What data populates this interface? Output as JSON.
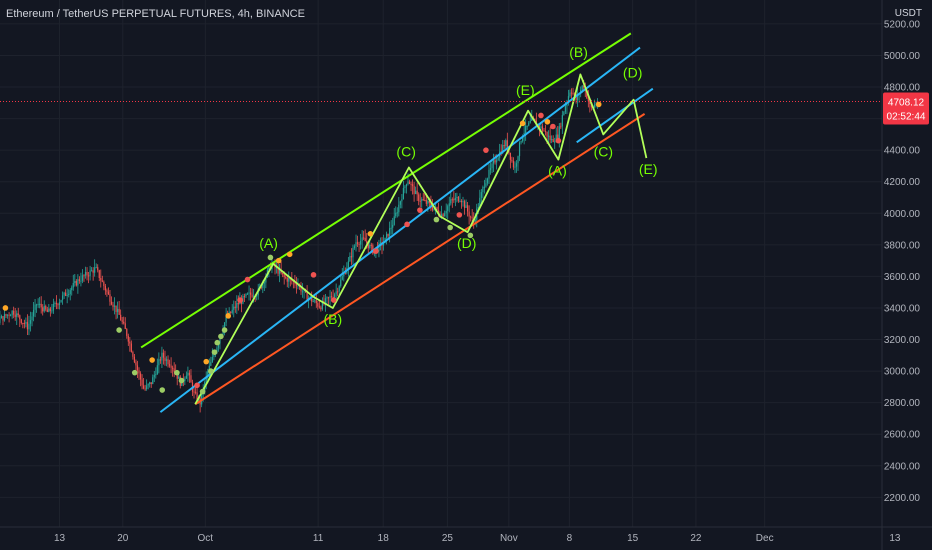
{
  "header": {
    "title": "Ethereum / TetherUS PERPETUAL FUTURES, 4h, BINANCE",
    "currency": "USDT"
  },
  "price_tag": {
    "price": "4708.12",
    "countdown": "02:52:44",
    "color": "#f23645"
  },
  "colors": {
    "background": "#131722",
    "up_candle": "#26a69a",
    "down_candle": "#ef5350",
    "upper_channel": "#76ff03",
    "middle_channel": "#29b6f6",
    "lower_channel": "#ff5722",
    "wave_path": "#b2ff59",
    "wave_labels": "#76ff03"
  },
  "chart_data": {
    "type": "candlestick",
    "symbol": "Ethereum / TetherUS PERPETUAL FUTURES",
    "timeframe": "4h",
    "exchange": "BINANCE",
    "x_axis": {
      "tick_labels": [
        "13",
        "20",
        "Oct",
        "11",
        "18",
        "25",
        "Nov",
        "8",
        "15",
        "22",
        "Dec",
        "13"
      ],
      "tick_days": [
        -17.5,
        -10.6,
        -1.6,
        10.7,
        17.8,
        24.8,
        31.5,
        38.1,
        45.0,
        51.9,
        59.4,
        73.6
      ]
    },
    "y_axis": {
      "ylim": [
        2050,
        5320
      ],
      "tick_labels": [
        "2200.00",
        "2400.00",
        "2600.00",
        "2800.00",
        "3000.00",
        "3200.00",
        "3400.00",
        "3600.00",
        "3800.00",
        "4000.00",
        "4200.00",
        "4400.00",
        "4600.00",
        "4800.00",
        "5000.00",
        "5200.00"
      ]
    },
    "current_price": 4708.12,
    "price_path": [
      {
        "day": -30.0,
        "price": 3950
      },
      {
        "day": -29.0,
        "price": 3880
      },
      {
        "day": -28.3,
        "price": 3400
      },
      {
        "day": -27.3,
        "price": 3290
      },
      {
        "day": -26.0,
        "price": 3330
      },
      {
        "day": -24.3,
        "price": 3310
      },
      {
        "day": -22.4,
        "price": 3380
      },
      {
        "day": -20.8,
        "price": 3280
      },
      {
        "day": -19.8,
        "price": 3430
      },
      {
        "day": -18.6,
        "price": 3370
      },
      {
        "day": -17.3,
        "price": 3450
      },
      {
        "day": -15.2,
        "price": 3580
      },
      {
        "day": -13.4,
        "price": 3650
      },
      {
        "day": -12.0,
        "price": 3480
      },
      {
        "day": -10.8,
        "price": 3350
      },
      {
        "day": -9.9,
        "price": 3220
      },
      {
        "day": -8.8,
        "price": 3000
      },
      {
        "day": -8.1,
        "price": 2880
      },
      {
        "day": -7.3,
        "price": 2930
      },
      {
        "day": -6.2,
        "price": 3100
      },
      {
        "day": -5.1,
        "price": 3040
      },
      {
        "day": -4.1,
        "price": 2920
      },
      {
        "day": -3.4,
        "price": 3000
      },
      {
        "day": -2.7,
        "price": 2860
      },
      {
        "day": -2.0,
        "price": 2800
      },
      {
        "day": -1.2,
        "price": 2990
      },
      {
        "day": -0.4,
        "price": 3120
      },
      {
        "day": 0.8,
        "price": 3330
      },
      {
        "day": 2.0,
        "price": 3420
      },
      {
        "day": 3.2,
        "price": 3480
      },
      {
        "day": 4.3,
        "price": 3500
      },
      {
        "day": 5.8,
        "price": 3680
      },
      {
        "day": 7.2,
        "price": 3590
      },
      {
        "day": 8.5,
        "price": 3560
      },
      {
        "day": 9.5,
        "price": 3480
      },
      {
        "day": 11.1,
        "price": 3410
      },
      {
        "day": 12.8,
        "price": 3500
      },
      {
        "day": 14.2,
        "price": 3690
      },
      {
        "day": 15.0,
        "price": 3820
      },
      {
        "day": 15.9,
        "price": 3830
      },
      {
        "day": 16.9,
        "price": 3760
      },
      {
        "day": 18.1,
        "price": 3820
      },
      {
        "day": 19.1,
        "price": 3950
      },
      {
        "day": 20.6,
        "price": 4220
      },
      {
        "day": 21.7,
        "price": 4100
      },
      {
        "day": 23.1,
        "price": 4050
      },
      {
        "day": 24.4,
        "price": 3990
      },
      {
        "day": 25.4,
        "price": 4080
      },
      {
        "day": 26.4,
        "price": 4100
      },
      {
        "day": 27.8,
        "price": 3940
      },
      {
        "day": 29.0,
        "price": 4190
      },
      {
        "day": 30.1,
        "price": 4330
      },
      {
        "day": 31.3,
        "price": 4450
      },
      {
        "day": 32.3,
        "price": 4280
      },
      {
        "day": 33.1,
        "price": 4500
      },
      {
        "day": 34.2,
        "price": 4590
      },
      {
        "day": 35.4,
        "price": 4530
      },
      {
        "day": 36.3,
        "price": 4460
      },
      {
        "day": 37.0,
        "price": 4490
      },
      {
        "day": 37.6,
        "price": 4640
      },
      {
        "day": 38.4,
        "price": 4790
      },
      {
        "day": 39.0,
        "price": 4720
      },
      {
        "day": 39.8,
        "price": 4820
      },
      {
        "day": 40.6,
        "price": 4660
      },
      {
        "day": 41.3,
        "price": 4708
      }
    ],
    "channels": [
      {
        "name": "upper",
        "color": "#76ff03",
        "from": [
          -8.6,
          3150
        ],
        "to": [
          44.8,
          5140
        ]
      },
      {
        "name": "middle",
        "color": "#29b6f6",
        "from": [
          -6.5,
          2740
        ],
        "to": [
          45.8,
          5050
        ]
      },
      {
        "name": "lower",
        "color": "#ff5722",
        "from": [
          -2.7,
          2790
        ],
        "to": [
          46.3,
          4630
        ]
      },
      {
        "name": "upper-short",
        "color": "#29b6f6",
        "from": [
          38.9,
          4450
        ],
        "to": [
          47.2,
          4790
        ]
      }
    ],
    "wave_path": [
      [
        -2.7,
        2790
      ],
      [
        5.8,
        3680
      ],
      [
        10.2,
        3470
      ],
      [
        12.3,
        3400
      ],
      [
        20.6,
        4290
      ],
      [
        24.0,
        3980
      ],
      [
        27.0,
        3880
      ],
      [
        33.6,
        4650
      ],
      [
        36.9,
        4340
      ],
      [
        39.3,
        4880
      ],
      [
        41.8,
        4500
      ],
      [
        45.1,
        4720
      ],
      [
        46.5,
        4350
      ]
    ],
    "wave_labels": [
      {
        "text": "(A)",
        "day": 5.3,
        "price": 3780
      },
      {
        "text": "(B)",
        "day": 12.3,
        "price": 3300
      },
      {
        "text": "(C)",
        "day": 20.3,
        "price": 4360
      },
      {
        "text": "(D)",
        "day": 26.9,
        "price": 3780
      },
      {
        "text": "(E)",
        "day": 33.3,
        "price": 4750
      },
      {
        "text": "(A)",
        "day": 36.8,
        "price": 4240
      },
      {
        "text": "(B)",
        "day": 39.1,
        "price": 4990
      },
      {
        "text": "(C)",
        "day": 41.8,
        "price": 4360
      },
      {
        "text": "(D)",
        "day": 45.0,
        "price": 4860
      },
      {
        "text": "(E)",
        "day": 46.7,
        "price": 4250
      }
    ],
    "signal_dots": [
      {
        "day": -25.3,
        "price": 3340,
        "color": "#ffa726"
      },
      {
        "day": -23.4,
        "price": 3400,
        "color": "#ffa726"
      },
      {
        "day": -11.0,
        "price": 3260,
        "color": "#9ccc65"
      },
      {
        "day": -9.3,
        "price": 2990,
        "color": "#9ccc65"
      },
      {
        "day": -7.4,
        "price": 3070,
        "color": "#ffa726"
      },
      {
        "day": -6.3,
        "price": 2880,
        "color": "#9ccc65"
      },
      {
        "day": -4.7,
        "price": 2990,
        "color": "#9ccc65"
      },
      {
        "day": -4.2,
        "price": 2940,
        "color": "#9ccc65"
      },
      {
        "day": -2.5,
        "price": 2910,
        "color": "#ef5350"
      },
      {
        "day": -1.9,
        "price": 2870,
        "color": "#9ccc65"
      },
      {
        "day": -1.5,
        "price": 3060,
        "color": "#ffa726"
      },
      {
        "day": -1.0,
        "price": 3000,
        "color": "#9ccc65"
      },
      {
        "day": -0.6,
        "price": 3120,
        "color": "#9ccc65"
      },
      {
        "day": -0.3,
        "price": 3180,
        "color": "#9ccc65"
      },
      {
        "day": 0.1,
        "price": 3220,
        "color": "#9ccc65"
      },
      {
        "day": 0.5,
        "price": 3260,
        "color": "#9ccc65"
      },
      {
        "day": 0.9,
        "price": 3350,
        "color": "#ffa726"
      },
      {
        "day": 2.2,
        "price": 3450,
        "color": "#ef5350"
      },
      {
        "day": 3.0,
        "price": 3580,
        "color": "#ef5350"
      },
      {
        "day": 5.5,
        "price": 3720,
        "color": "#9ccc65"
      },
      {
        "day": 6.4,
        "price": 3700,
        "color": "#ffa726"
      },
      {
        "day": 7.6,
        "price": 3740,
        "color": "#ffa726"
      },
      {
        "day": 10.2,
        "price": 3610,
        "color": "#ef5350"
      },
      {
        "day": 12.4,
        "price": 3450,
        "color": "#ef5350"
      },
      {
        "day": 16.4,
        "price": 3870,
        "color": "#ffa726"
      },
      {
        "day": 17.0,
        "price": 3760,
        "color": "#ef5350"
      },
      {
        "day": 20.4,
        "price": 3930,
        "color": "#ef5350"
      },
      {
        "day": 21.8,
        "price": 4020,
        "color": "#ef5350"
      },
      {
        "day": 23.6,
        "price": 3960,
        "color": "#9ccc65"
      },
      {
        "day": 25.1,
        "price": 3910,
        "color": "#9ccc65"
      },
      {
        "day": 26.1,
        "price": 3990,
        "color": "#ef5350"
      },
      {
        "day": 27.3,
        "price": 3860,
        "color": "#9ccc65"
      },
      {
        "day": 29.0,
        "price": 4400,
        "color": "#ef5350"
      },
      {
        "day": 33.0,
        "price": 4570,
        "color": "#ffa726"
      },
      {
        "day": 35.0,
        "price": 4620,
        "color": "#ef5350"
      },
      {
        "day": 35.7,
        "price": 4580,
        "color": "#ffa726"
      },
      {
        "day": 36.3,
        "price": 4550,
        "color": "#ef5350"
      },
      {
        "day": 36.9,
        "price": 4460,
        "color": "#ef5350"
      },
      {
        "day": 41.3,
        "price": 4690,
        "color": "#ffa726"
      }
    ]
  }
}
